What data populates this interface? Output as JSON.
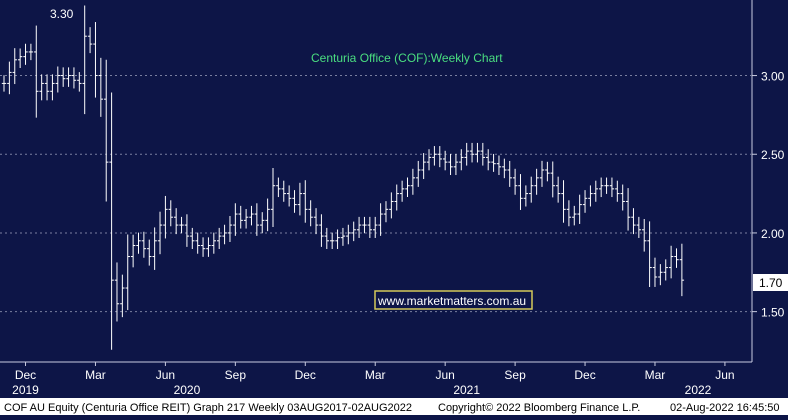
{
  "chart_data": {
    "type": "ohlc",
    "title": "Centuria Office (COF):Weekly Chart",
    "watermark": "www.marketmatters.com.au",
    "last_price_label": "1.70",
    "high_annotation": "3.30",
    "ylim": [
      1.18,
      3.48
    ],
    "y_ticks": [
      {
        "value": 3.0,
        "label": "3.00"
      },
      {
        "value": 2.5,
        "label": "2.50"
      },
      {
        "value": 2.0,
        "label": "2.00"
      },
      {
        "value": 1.5,
        "label": "1.50"
      }
    ],
    "x_month_ticks": [
      {
        "label": "Dec",
        "week": 4
      },
      {
        "label": "Mar",
        "week": 17
      },
      {
        "label": "Jun",
        "week": 30
      },
      {
        "label": "Sep",
        "week": 43
      },
      {
        "label": "Dec",
        "week": 56
      },
      {
        "label": "Mar",
        "week": 69
      },
      {
        "label": "Jun",
        "week": 82
      },
      {
        "label": "Sep",
        "week": 95
      },
      {
        "label": "Dec",
        "week": 108
      },
      {
        "label": "Mar",
        "week": 121
      },
      {
        "label": "Jun",
        "week": 134
      }
    ],
    "x_year_labels": [
      {
        "label": "2019",
        "week": 4
      },
      {
        "label": "2020",
        "week": 34
      },
      {
        "label": "2021",
        "week": 86
      },
      {
        "label": "2022",
        "week": 129
      }
    ],
    "closes": [
      2.95,
      3.02,
      3.1,
      3.12,
      3.15,
      3.15,
      2.9,
      2.95,
      2.9,
      2.95,
      3.0,
      2.98,
      3.0,
      2.97,
      2.95,
      3.25,
      3.2,
      3.0,
      2.85,
      2.45,
      1.7,
      1.55,
      1.65,
      1.85,
      1.92,
      1.95,
      1.9,
      1.85,
      1.95,
      2.05,
      2.15,
      2.1,
      2.05,
      2.05,
      1.98,
      1.95,
      1.92,
      1.9,
      1.92,
      1.95,
      1.98,
      2.0,
      2.05,
      2.12,
      2.08,
      2.1,
      2.12,
      2.05,
      2.08,
      2.15,
      2.3,
      2.28,
      2.25,
      2.22,
      2.18,
      2.25,
      2.15,
      2.1,
      2.05,
      1.98,
      1.95,
      1.95,
      1.97,
      1.98,
      2.0,
      2.02,
      2.05,
      2.05,
      2.02,
      2.05,
      2.12,
      2.15,
      2.2,
      2.25,
      2.28,
      2.3,
      2.35,
      2.4,
      2.45,
      2.48,
      2.5,
      2.47,
      2.45,
      2.42,
      2.45,
      2.48,
      2.52,
      2.5,
      2.52,
      2.48,
      2.45,
      2.44,
      2.42,
      2.4,
      2.35,
      2.3,
      2.22,
      2.25,
      2.3,
      2.35,
      2.4,
      2.38,
      2.3,
      2.25,
      2.15,
      2.1,
      2.12,
      2.18,
      2.22,
      2.25,
      2.28,
      2.3,
      2.3,
      2.28,
      2.25,
      2.2,
      2.1,
      2.05,
      2.02,
      1.95,
      1.78,
      1.72,
      1.75,
      1.78,
      1.85,
      1.83,
      1.7
    ]
  },
  "footer": {
    "left": "COF AU Equity (Centuria Office REIT) Graph 217  Weekly 03AUG2017-02AUG2022",
    "copyright": "Copyright© 2022 Bloomberg Finance L.P.",
    "timestamp": "02-Aug-2022 16:45:50"
  },
  "colors": {
    "background": "#0d1547",
    "bar": "#ffffff",
    "title": "#4ade80",
    "grid": "#7a7fa0",
    "watermark_border": "#d4c95a",
    "watermark_text": "#ffffff",
    "footer_bg": "#ffffff"
  }
}
